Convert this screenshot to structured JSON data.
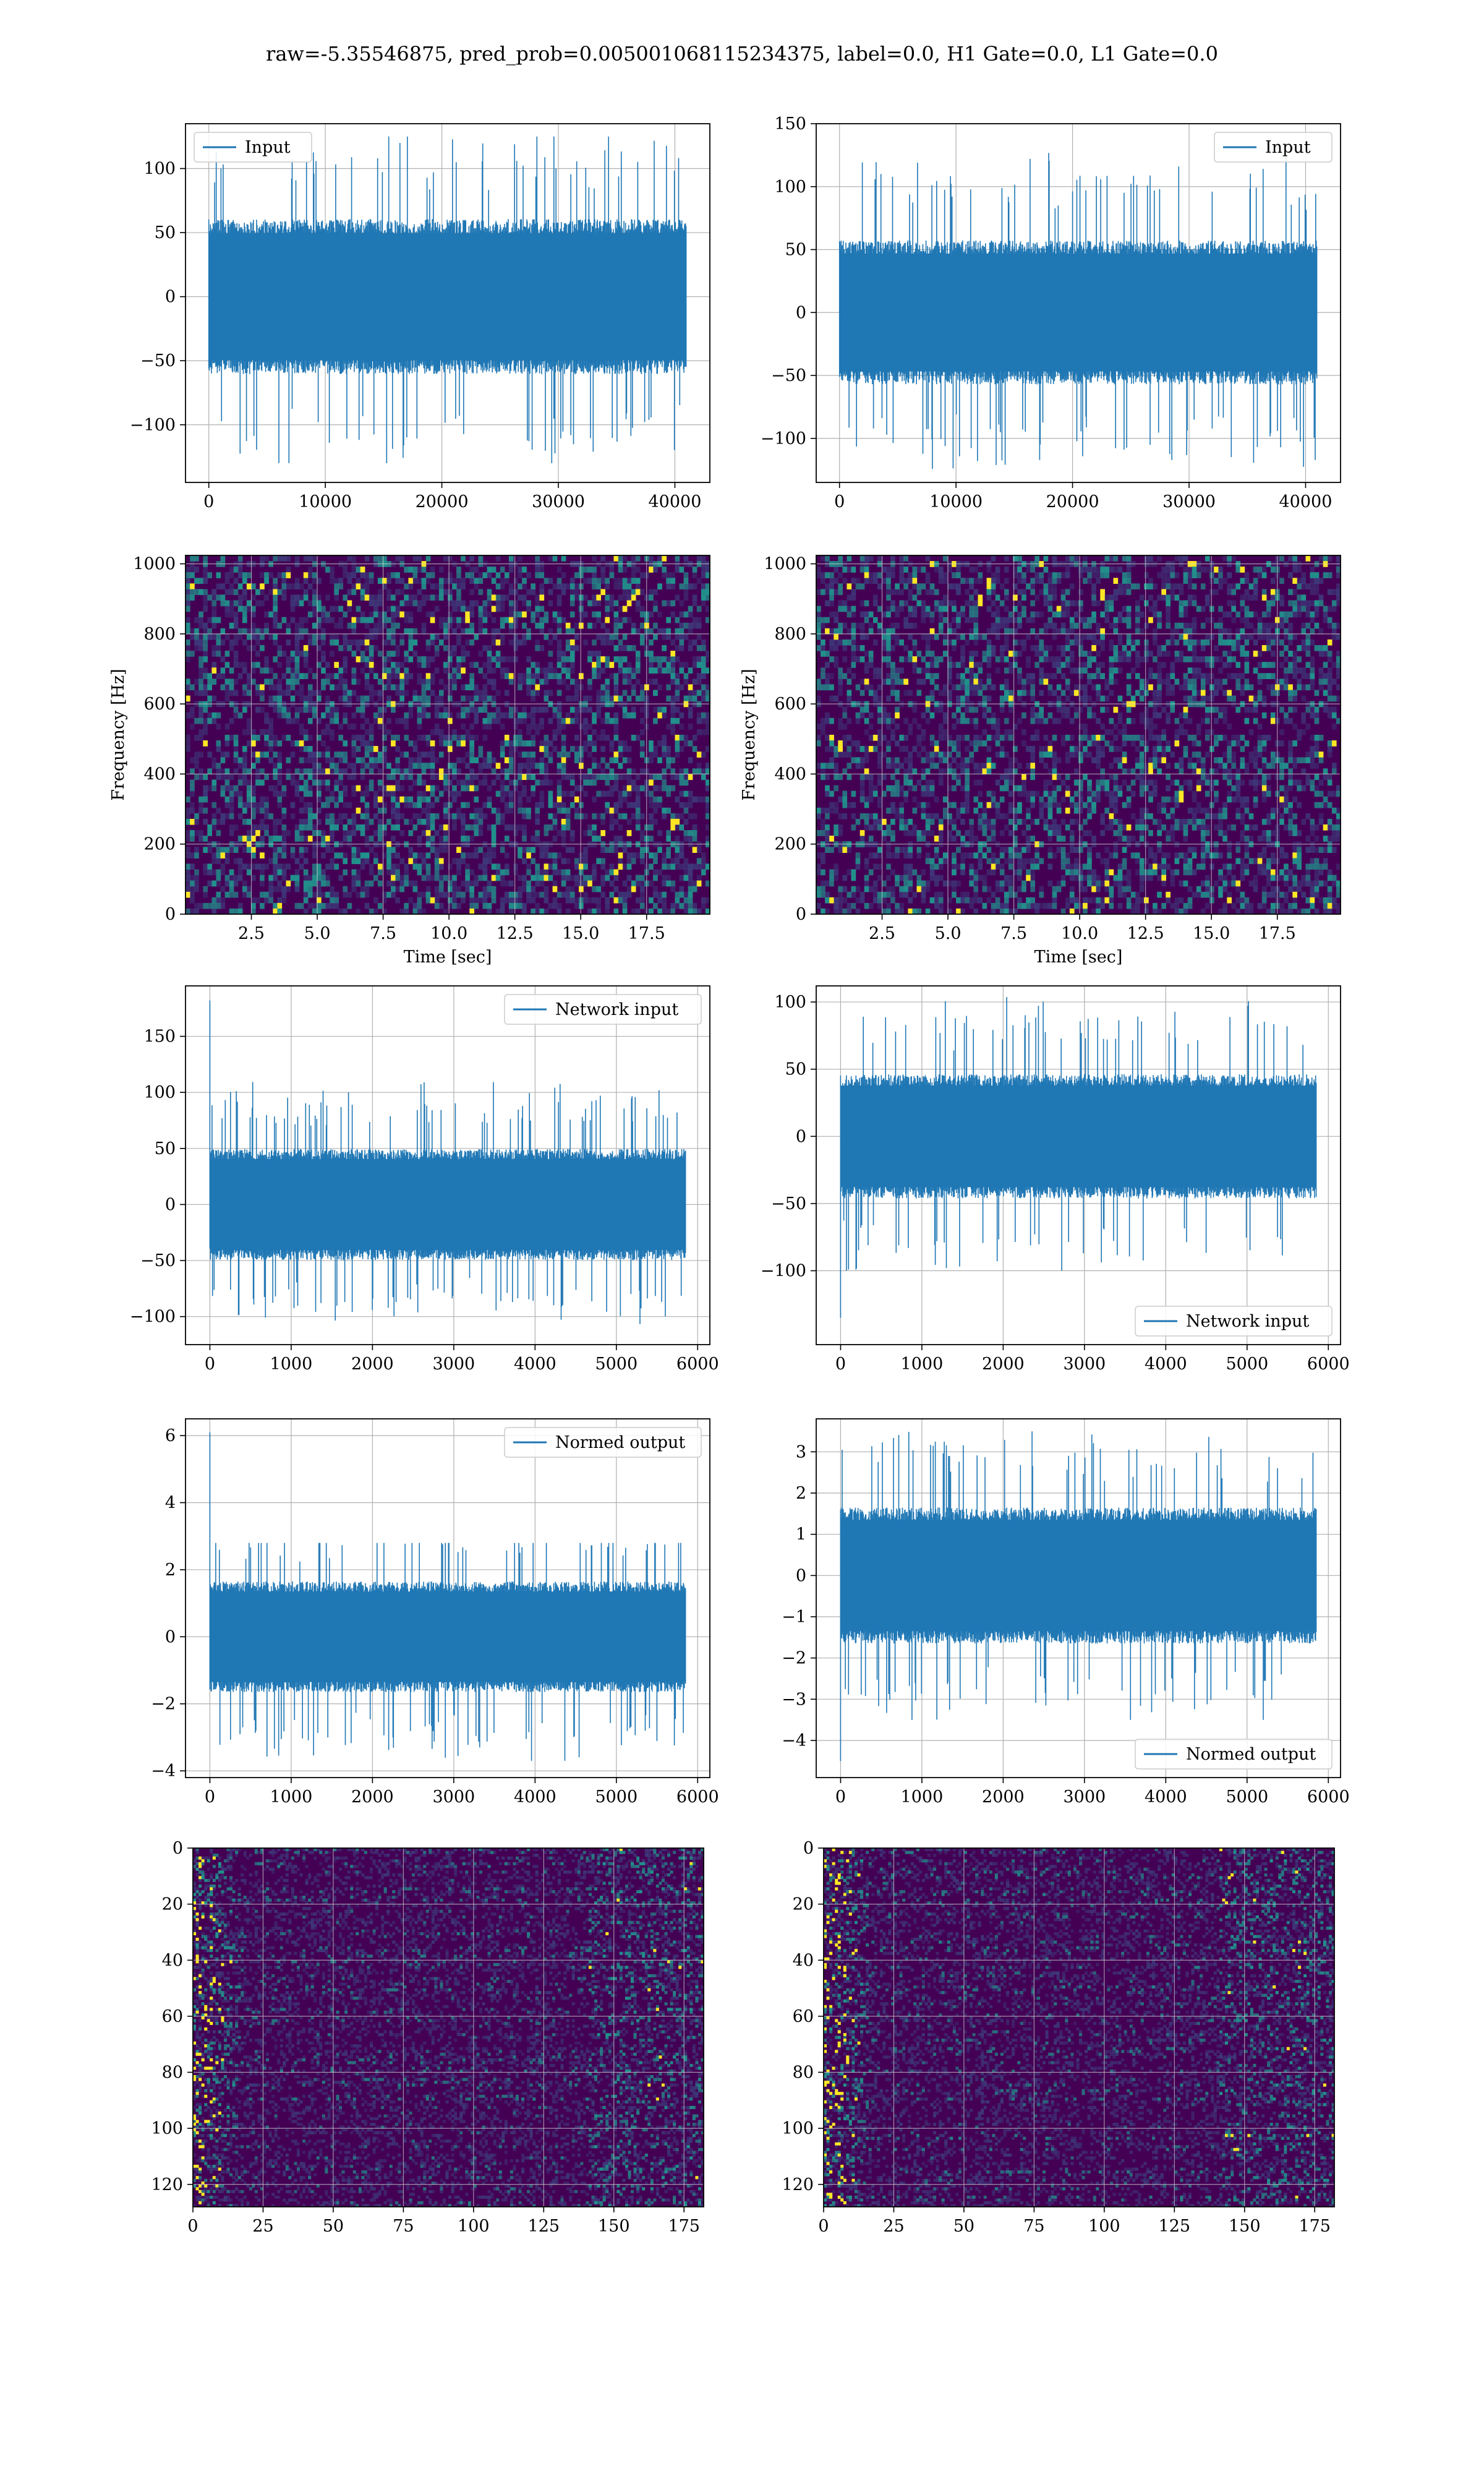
{
  "title": "raw=-5.35546875, pred_prob=0.005001068115234375, label=0.0, H1 Gate=0.0, L1 Gate=0.0",
  "colors": {
    "line": "#1f77b4",
    "grid": "#b0b0b0",
    "axes": "#000000",
    "viridis_low": "#440154",
    "viridis_mid": "#21918c",
    "viridis_high": "#fde725"
  },
  "chart_data": [
    {
      "type": "line",
      "panel": "row1-left",
      "legend": "Input",
      "legend_loc": "upper left",
      "grid": true,
      "xlim": [
        -2000,
        43000
      ],
      "ylim": [
        -145,
        135
      ],
      "xticks": [
        0,
        10000,
        20000,
        30000,
        40000
      ],
      "yticks": [
        -100,
        -50,
        0,
        50,
        100
      ],
      "x_range": [
        0,
        40960
      ],
      "y_range": [
        -130,
        125
      ],
      "band": [
        -55,
        55
      ],
      "spikes_up": 125,
      "spikes_down": -130
    },
    {
      "type": "line",
      "panel": "row1-right",
      "legend": "Input",
      "legend_loc": "upper right",
      "grid": true,
      "xlim": [
        -2000,
        43000
      ],
      "ylim": [
        -135,
        150
      ],
      "xticks": [
        0,
        10000,
        20000,
        30000,
        40000
      ],
      "yticks": [
        -100,
        -50,
        0,
        50,
        100,
        150
      ],
      "x_range": [
        0,
        40960
      ],
      "y_range": [
        -125,
        140
      ],
      "band": [
        -52,
        52
      ],
      "spikes_up": 140,
      "spikes_down": -125
    },
    {
      "type": "heatmap",
      "panel": "row2-left",
      "colormap": "viridis",
      "grid": true,
      "xlabel": "Time [sec]",
      "ylabel": "Frequency [Hz]",
      "xlim": [
        0,
        19.9
      ],
      "ylim": [
        0,
        1024
      ],
      "xticks": [
        2.5,
        5.0,
        7.5,
        10.0,
        12.5,
        15.0,
        17.5
      ],
      "yticks": [
        0,
        200,
        400,
        600,
        800,
        1000
      ]
    },
    {
      "type": "heatmap",
      "panel": "row2-right",
      "colormap": "viridis",
      "grid": true,
      "xlabel": "Time [sec]",
      "ylabel": "Frequency [Hz]",
      "xlim": [
        0,
        19.9
      ],
      "ylim": [
        0,
        1024
      ],
      "xticks": [
        2.5,
        5.0,
        7.5,
        10.0,
        12.5,
        15.0,
        17.5
      ],
      "yticks": [
        0,
        200,
        400,
        600,
        800,
        1000
      ]
    },
    {
      "type": "line",
      "panel": "row3-left",
      "legend": "Network input",
      "legend_loc": "upper right",
      "grid": true,
      "xlim": [
        -300,
        6150
      ],
      "ylim": [
        -125,
        195
      ],
      "xticks": [
        0,
        1000,
        2000,
        3000,
        4000,
        5000,
        6000
      ],
      "yticks": [
        -100,
        -50,
        0,
        50,
        100,
        150
      ],
      "x_range": [
        0,
        5850
      ],
      "y_range": [
        -110,
        182
      ],
      "band": [
        -45,
        45
      ],
      "spikes_up": 120,
      "spikes_down": -110,
      "first_spike": 182
    },
    {
      "type": "line",
      "panel": "row3-right",
      "legend": "Network input",
      "legend_loc": "lower right",
      "grid": true,
      "xlim": [
        -300,
        6150
      ],
      "ylim": [
        -155,
        112
      ],
      "xticks": [
        0,
        1000,
        2000,
        3000,
        4000,
        5000,
        6000
      ],
      "yticks": [
        -100,
        -50,
        0,
        50,
        100
      ],
      "x_range": [
        0,
        5850
      ],
      "y_range": [
        -135,
        108
      ],
      "band": [
        -42,
        42
      ],
      "spikes_up": 108,
      "spikes_down": -100,
      "first_spike": -135
    },
    {
      "type": "line",
      "panel": "row4-left",
      "legend": "Normed output",
      "legend_loc": "upper right",
      "grid": true,
      "xlim": [
        -300,
        6150
      ],
      "ylim": [
        -4.2,
        6.5
      ],
      "xticks": [
        0,
        1000,
        2000,
        3000,
        4000,
        5000,
        6000
      ],
      "yticks": [
        -4,
        -2,
        0,
        2,
        4,
        6
      ],
      "x_range": [
        0,
        5850
      ],
      "y_range": [
        -3.7,
        6.1
      ],
      "band": [
        -1.5,
        1.5
      ],
      "spikes_up": 2.8,
      "spikes_down": -3.7,
      "first_spike": 6.1
    },
    {
      "type": "line",
      "panel": "row4-right",
      "legend": "Normed output",
      "legend_loc": "lower right",
      "grid": true,
      "xlim": [
        -300,
        6150
      ],
      "ylim": [
        -4.9,
        3.8
      ],
      "xticks": [
        0,
        1000,
        2000,
        3000,
        4000,
        5000,
        6000
      ],
      "yticks": [
        -4,
        -3,
        -2,
        -1,
        0,
        1,
        2,
        3
      ],
      "x_range": [
        0,
        5850
      ],
      "y_range": [
        -4.5,
        3.5
      ],
      "band": [
        -1.5,
        1.5
      ],
      "spikes_up": 3.5,
      "spikes_down": -3.5,
      "first_spike": -4.5
    },
    {
      "type": "heatmap",
      "panel": "row5-left",
      "colormap": "viridis",
      "grid": true,
      "xlim": [
        0,
        182
      ],
      "ylim": [
        128,
        0
      ],
      "xticks": [
        0,
        25,
        50,
        75,
        100,
        125,
        150,
        175
      ],
      "yticks": [
        0,
        20,
        40,
        60,
        80,
        100,
        120
      ]
    },
    {
      "type": "heatmap",
      "panel": "row5-right",
      "colormap": "viridis",
      "grid": true,
      "xlim": [
        0,
        182
      ],
      "ylim": [
        128,
        0
      ],
      "xticks": [
        0,
        25,
        50,
        75,
        100,
        125,
        150,
        175
      ],
      "yticks": [
        0,
        20,
        40,
        60,
        80,
        100,
        120
      ]
    }
  ]
}
